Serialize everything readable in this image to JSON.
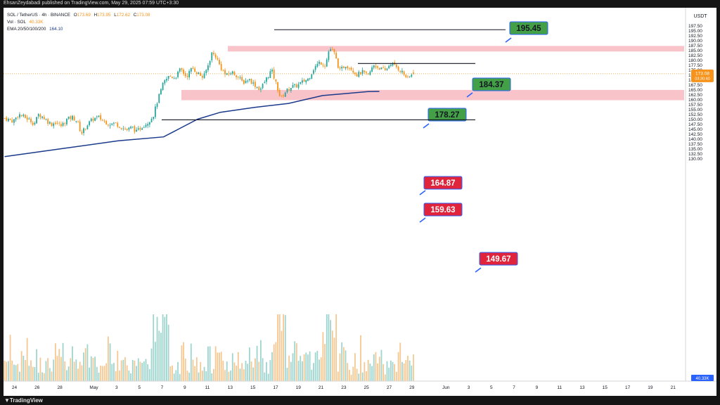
{
  "publisher_line": "EhsanZeydabadi published on TradingView.com, May 29, 2025 07:59 UTC+3:30",
  "legend": {
    "symbol": "SOL / TetherUS · 4h · BINANCE",
    "o_label": "O",
    "o": "173.69",
    "h_label": "H",
    "h": "173.95",
    "l_label": "L",
    "l": "172.62",
    "c_label": "C",
    "c": "173.08",
    "vol_label": "Vol · SOL",
    "vol": "40.33K",
    "ema_label": "EMA 20/50/100/200",
    "ema": "164.10"
  },
  "currency": "USDT",
  "last_price": "173.08",
  "last_countdown": "03:30:40",
  "volume_badge": "40.33K",
  "brand": "TradingView",
  "colors": {
    "up": "#26a69a",
    "down": "#f7931a",
    "ema": "#1b3a8c",
    "zone": "#f8c4ca",
    "label_green": "#43a047",
    "label_red": "#e0243c",
    "accent_blue": "#2962ff"
  },
  "chart_data": {
    "type": "candlestick",
    "interval": "4h",
    "ylim": [
      129.5,
      198.2
    ],
    "y_ticks": [
      "197.50",
      "195.00",
      "192.50",
      "190.00",
      "187.50",
      "185.00",
      "182.50",
      "180.00",
      "177.50",
      "175.00",
      "172.50",
      "170.00",
      "167.50",
      "165.00",
      "162.50",
      "160.00",
      "157.50",
      "155.00",
      "152.50",
      "150.00",
      "147.50",
      "145.00",
      "142.50",
      "140.00",
      "137.50",
      "135.00",
      "132.50",
      "130.00"
    ],
    "x_ticks": [
      "24",
      "26",
      "28",
      "May",
      "3",
      "5",
      "7",
      "9",
      "11",
      "13",
      "15",
      "17",
      "19",
      "21",
      "23",
      "25",
      "27",
      "29",
      "Jun",
      "3",
      "5",
      "7",
      "9",
      "11",
      "13",
      "15",
      "17",
      "19",
      "21"
    ],
    "price_path": [
      [
        0,
        150.5
      ],
      [
        1.5,
        149
      ],
      [
        2.5,
        152.5
      ],
      [
        3.5,
        151
      ],
      [
        4.5,
        149.5
      ],
      [
        5.2,
        147.5
      ],
      [
        6,
        152.5
      ],
      [
        6.8,
        151
      ],
      [
        7.5,
        149
      ],
      [
        8.3,
        147.5
      ],
      [
        9,
        148.5
      ],
      [
        10,
        146.5
      ],
      [
        11,
        150
      ],
      [
        12,
        151
      ],
      [
        12.8,
        149
      ],
      [
        13.5,
        142.5
      ],
      [
        14.5,
        147
      ],
      [
        15.5,
        150
      ],
      [
        16.5,
        151
      ],
      [
        17.5,
        149
      ],
      [
        18.5,
        147.5
      ],
      [
        19.5,
        148
      ],
      [
        20.5,
        146
      ],
      [
        21.5,
        144.5
      ],
      [
        22.5,
        146
      ],
      [
        23.2,
        143.5
      ],
      [
        24.3,
        146.5
      ],
      [
        25.3,
        148.5
      ],
      [
        26.2,
        152
      ],
      [
        27,
        160
      ],
      [
        28,
        168.5
      ],
      [
        29,
        172
      ],
      [
        30,
        171
      ],
      [
        31,
        175.5
      ],
      [
        32,
        171.5
      ],
      [
        33,
        176
      ],
      [
        34,
        173.5
      ],
      [
        35,
        171
      ],
      [
        35.8,
        177
      ],
      [
        36.5,
        183.5
      ],
      [
        37.2,
        182
      ],
      [
        38,
        176.5
      ],
      [
        39,
        172
      ],
      [
        40,
        174
      ],
      [
        41,
        172
      ],
      [
        42,
        168.5
      ],
      [
        43,
        170.5
      ],
      [
        44,
        167.5
      ],
      [
        45,
        165
      ],
      [
        46,
        170
      ],
      [
        47,
        175
      ],
      [
        48,
        166.5
      ],
      [
        48.6,
        160.5
      ],
      [
        49.5,
        164
      ],
      [
        50.5,
        166.5
      ],
      [
        51.5,
        167
      ],
      [
        52.5,
        169
      ],
      [
        53.5,
        170.5
      ],
      [
        54.5,
        176
      ],
      [
        55.5,
        179
      ],
      [
        56.5,
        177.5
      ],
      [
        57.2,
        186
      ],
      [
        58,
        184
      ],
      [
        59,
        174.5
      ],
      [
        60,
        177.5
      ],
      [
        61,
        176
      ],
      [
        62,
        172.5
      ],
      [
        63,
        174
      ],
      [
        64,
        172
      ],
      [
        65,
        177.5
      ],
      [
        66,
        176
      ],
      [
        67,
        174.5
      ],
      [
        68,
        178.5
      ],
      [
        69,
        176.5
      ],
      [
        70,
        174
      ],
      [
        71,
        170.5
      ],
      [
        72,
        173.5
      ]
    ],
    "last_candle": {
      "open": 173.69,
      "high": 173.95,
      "low": 172.62,
      "close": 173.08
    },
    "volume": {
      "badge": "40.33K"
    },
    "ema_200_path": [
      [
        0,
        131
      ],
      [
        10,
        135
      ],
      [
        20,
        139
      ],
      [
        28,
        141
      ],
      [
        30,
        144
      ],
      [
        34,
        150
      ],
      [
        38,
        153.5
      ],
      [
        44,
        156
      ],
      [
        50,
        158
      ],
      [
        56,
        162
      ],
      [
        60,
        163
      ],
      [
        64,
        164
      ],
      [
        66,
        164.1
      ]
    ],
    "zones": [
      {
        "low": 184.37,
        "high": 187.2
      },
      {
        "low": 159.63,
        "high": 164.87
      }
    ],
    "levels": [
      {
        "label": "195.45",
        "value": 195.45,
        "type": "target"
      },
      {
        "label": "184.37",
        "value": 184.37,
        "type": "target"
      },
      {
        "label": "178.27",
        "value": 178.27,
        "type": "target"
      },
      {
        "label": "164.87",
        "value": 164.87,
        "type": "support"
      },
      {
        "label": "159.63",
        "value": 159.63,
        "type": "support"
      },
      {
        "label": "149.67",
        "value": 149.67,
        "type": "support"
      }
    ]
  }
}
